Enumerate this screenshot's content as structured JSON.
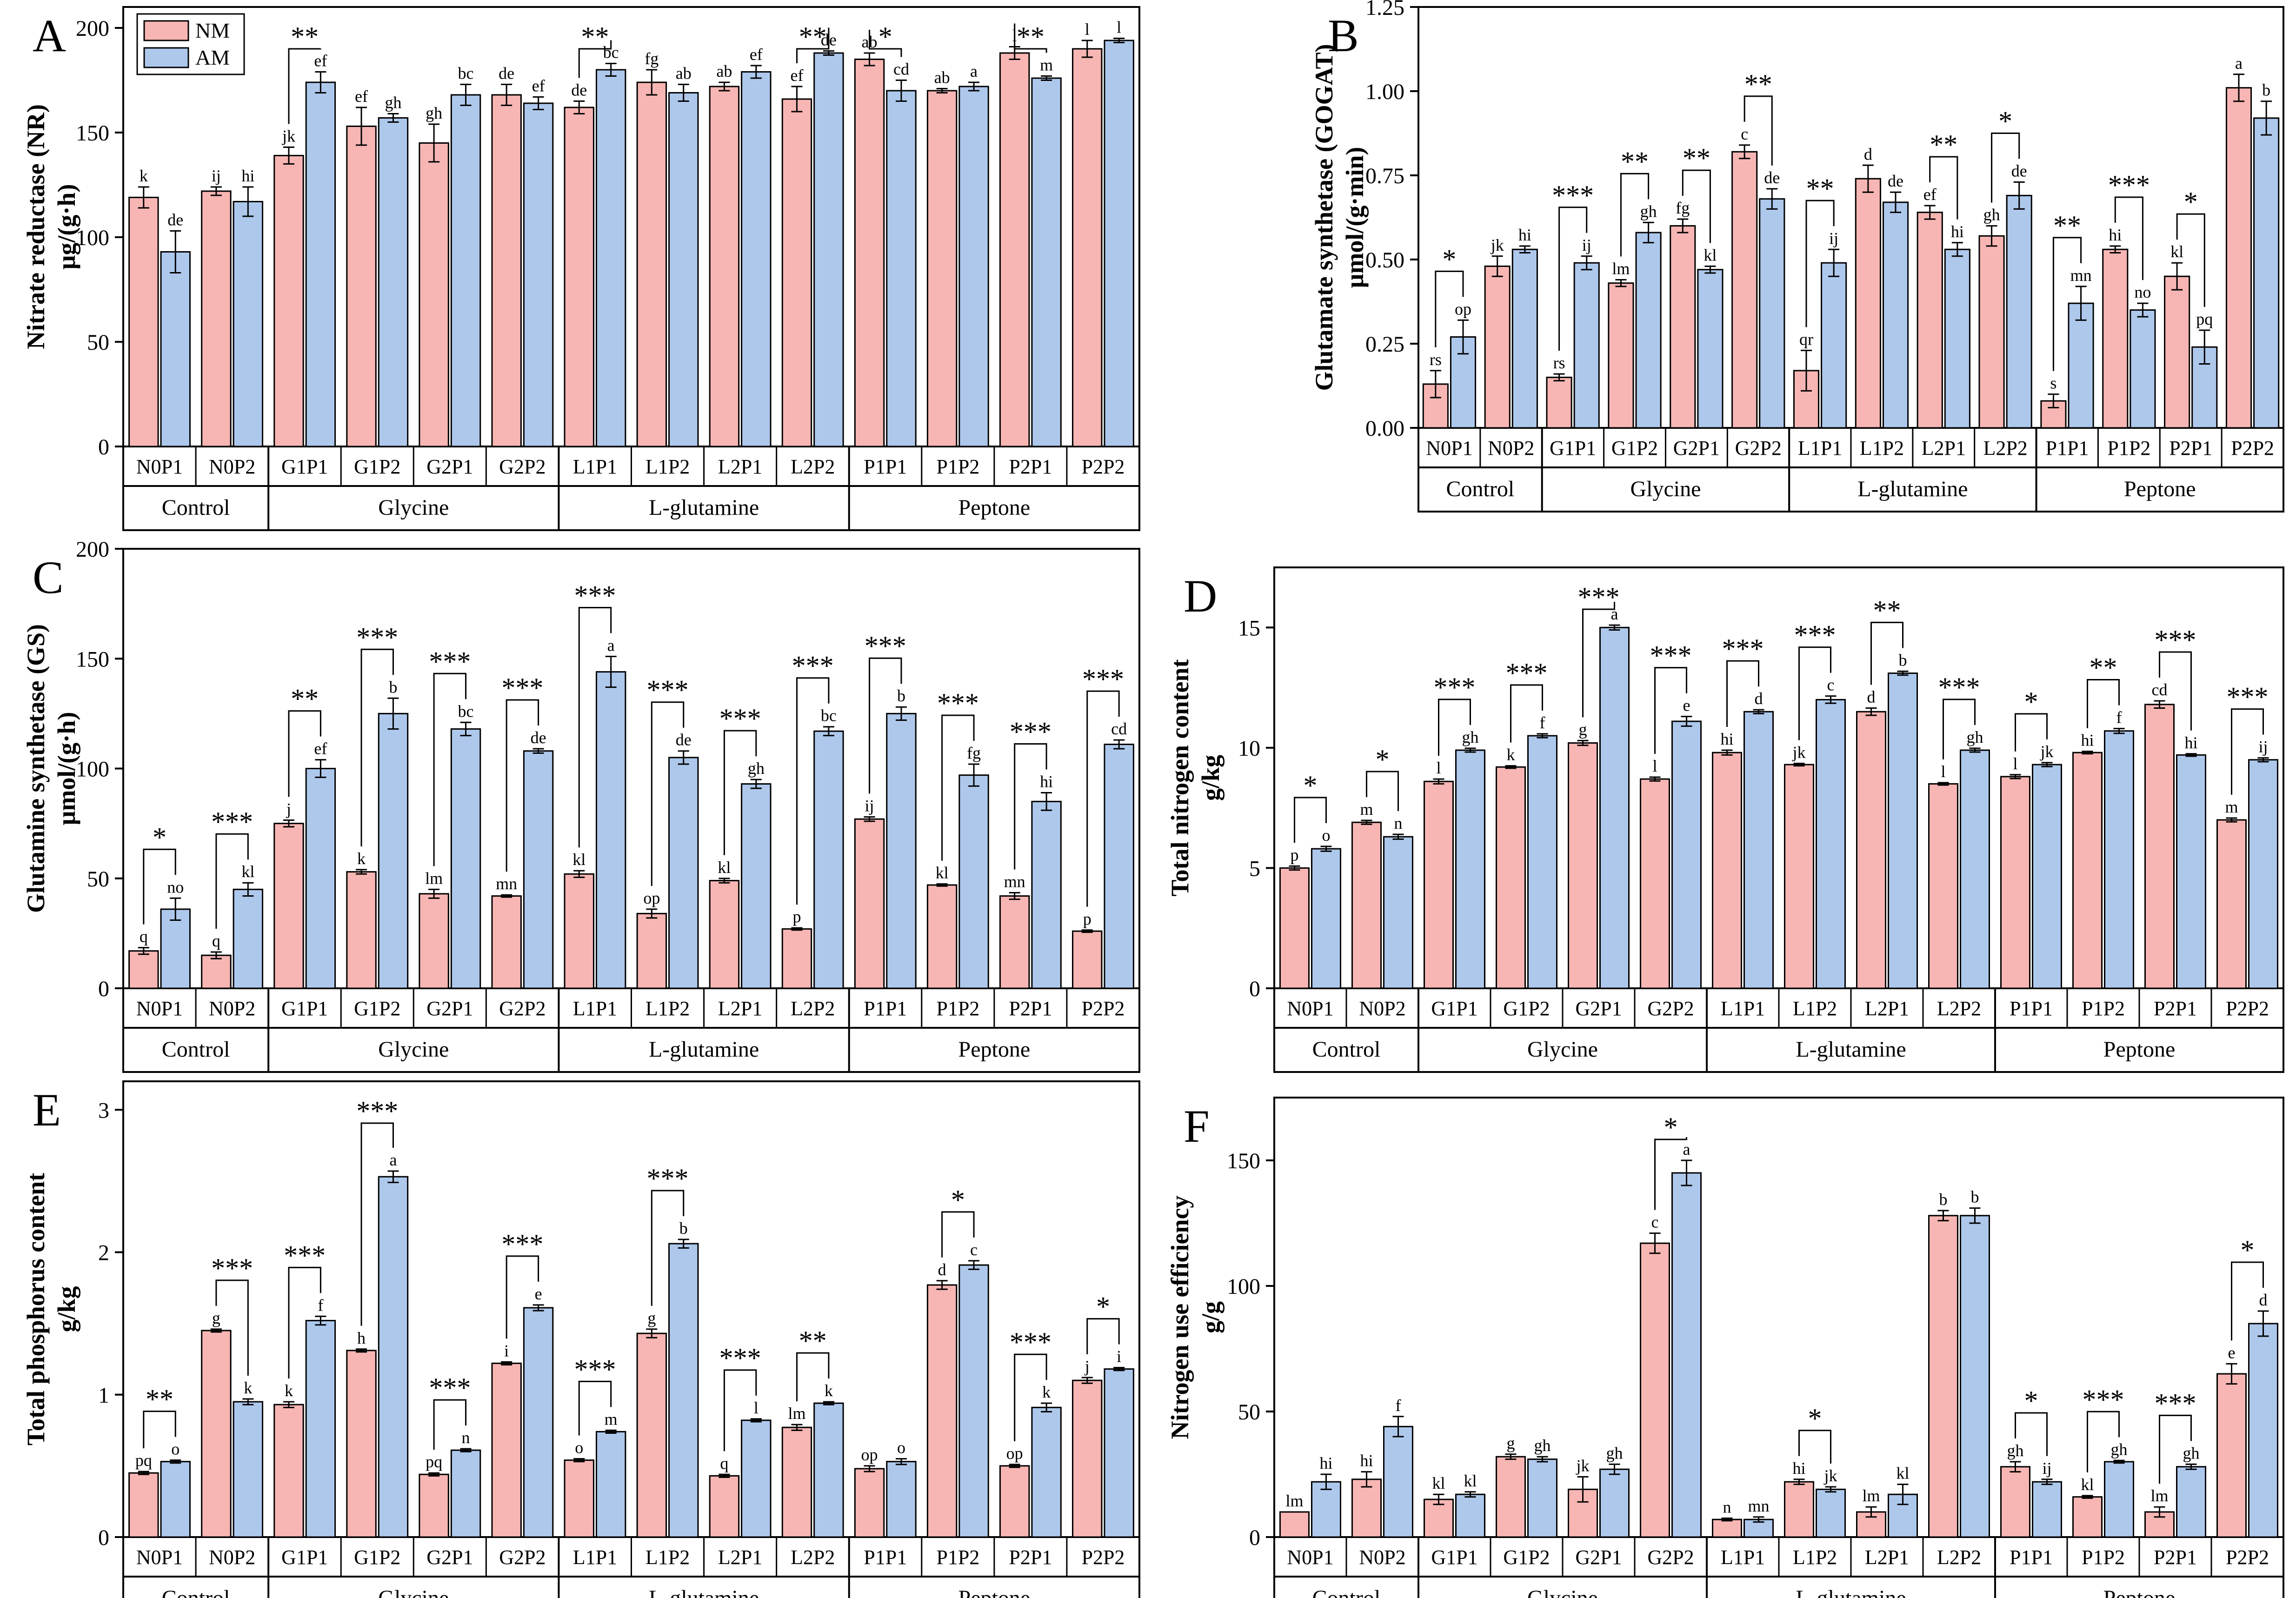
{
  "figure": {
    "legend": {
      "items": [
        {
          "label": "NM",
          "color": "#F7B6B3"
        },
        {
          "label": "AM",
          "color": "#AEC8EC"
        }
      ]
    },
    "colors": {
      "nm": "#F7B6B3",
      "am": "#AEC8EC",
      "axis": "#000000"
    },
    "groups": [
      "Control",
      "Glycine",
      "L-glutamine",
      "Peptone"
    ],
    "treatments": [
      "N0P1",
      "N0P2",
      "G1P1",
      "G1P2",
      "G2P1",
      "G2P2",
      "L1P1",
      "L1P2",
      "L2P1",
      "L2P2",
      "P1P1",
      "P1P2",
      "P2P1",
      "P2P2"
    ]
  },
  "chart_data": [
    {
      "panel": "A",
      "type": "bar",
      "ylabel": [
        "Nitrate reductase (NR)",
        "μg/(g·h)"
      ],
      "ylim": [
        0,
        210
      ],
      "yticks": [
        0,
        50,
        100,
        150,
        200
      ],
      "series": [
        {
          "name": "NM",
          "values": [
            119,
            122,
            139,
            153,
            145,
            168,
            162,
            174,
            172,
            166,
            185,
            170,
            188,
            190
          ],
          "err": [
            5,
            2,
            4,
            9,
            9,
            5,
            3,
            6,
            2,
            6,
            3,
            1,
            3,
            4
          ],
          "letters": [
            "k",
            "ij",
            "jk",
            "ef",
            "gh",
            "de",
            "de",
            "fg",
            "ab",
            "ef",
            "ab",
            "ab",
            "l",
            "l"
          ]
        },
        {
          "name": "AM",
          "values": [
            93,
            117,
            174,
            157,
            168,
            164,
            180,
            169,
            179,
            188,
            170,
            172,
            176,
            194
          ],
          "err": [
            10,
            7,
            5,
            2,
            5,
            3,
            3,
            4,
            3,
            1,
            5,
            2,
            1,
            1
          ],
          "letters": [
            "de",
            "hi",
            "ef",
            "gh",
            "bc",
            "ef",
            "bc",
            "ab",
            "ef",
            "de",
            "cd",
            "a",
            "m",
            "l"
          ]
        }
      ],
      "sig": [
        "",
        "",
        "**",
        "",
        "",
        "",
        "**",
        "",
        "",
        "**",
        "*",
        "",
        "**",
        ""
      ]
    },
    {
      "panel": "B",
      "type": "bar",
      "ylabel": [
        "Glutamate synthetase (GOGAT)",
        "μmol/(g·min)"
      ],
      "ylim": [
        0,
        1.25
      ],
      "yticks": [
        "0.00",
        "0.25",
        "0.50",
        "0.75",
        "1.00",
        "1.25"
      ],
      "series": [
        {
          "name": "NM",
          "values": [
            0.13,
            0.48,
            0.15,
            0.43,
            0.6,
            0.82,
            0.17,
            0.74,
            0.64,
            0.57,
            0.08,
            0.53,
            0.45,
            1.01
          ],
          "err": [
            0.04,
            0.03,
            0.01,
            0.01,
            0.02,
            0.02,
            0.06,
            0.04,
            0.02,
            0.03,
            0.02,
            0.01,
            0.04,
            0.04
          ],
          "letters": [
            "rs",
            "jk",
            "rs",
            "lm",
            "fg",
            "c",
            "qr",
            "d",
            "ef",
            "gh",
            "s",
            "hi",
            "kl",
            "a"
          ]
        },
        {
          "name": "AM",
          "values": [
            0.27,
            0.53,
            0.49,
            0.58,
            0.47,
            0.68,
            0.49,
            0.67,
            0.53,
            0.69,
            0.37,
            0.35,
            0.24,
            0.92
          ],
          "err": [
            0.05,
            0.01,
            0.02,
            0.03,
            0.01,
            0.03,
            0.04,
            0.03,
            0.02,
            0.04,
            0.05,
            0.02,
            0.05,
            0.05
          ],
          "letters": [
            "op",
            "hi",
            "ij",
            "gh",
            "kl",
            "de",
            "ij",
            "de",
            "hi",
            "de",
            "mn",
            "no",
            "pq",
            "b"
          ]
        }
      ],
      "sig": [
        "*",
        "",
        "***",
        "**",
        "**",
        "**",
        "**",
        "",
        "**",
        "*",
        "**",
        "***",
        "*",
        ""
      ]
    },
    {
      "panel": "C",
      "type": "bar",
      "ylabel": [
        "Glutamine synthetase (GS)",
        "μmol/(g·h)"
      ],
      "ylim": [
        0,
        200
      ],
      "yticks": [
        0,
        50,
        100,
        150,
        200
      ],
      "series": [
        {
          "name": "NM",
          "values": [
            17,
            15,
            75,
            53,
            43,
            42,
            52,
            34,
            49,
            27,
            77,
            47,
            42,
            26
          ],
          "err": [
            1.5,
            1.5,
            1.5,
            1,
            2,
            0.5,
            1.5,
            2,
            1,
            0.5,
            1,
            0.5,
            1.5,
            0.5
          ],
          "letters": [
            "q",
            "q",
            "j",
            "k",
            "lm",
            "mn",
            "kl",
            "op",
            "kl",
            "p",
            "ij",
            "kl",
            "mn",
            "p"
          ]
        },
        {
          "name": "AM",
          "values": [
            36,
            45,
            100,
            125,
            118,
            108,
            144,
            105,
            93,
            117,
            125,
            97,
            85,
            111
          ],
          "err": [
            5,
            3,
            4,
            7,
            3,
            1,
            7,
            3,
            2,
            2,
            3,
            5,
            4,
            2
          ],
          "letters": [
            "no",
            "kl",
            "ef",
            "b",
            "bc",
            "de",
            "a",
            "de",
            "gh",
            "bc",
            "b",
            "fg",
            "hi",
            "cd"
          ]
        }
      ],
      "sig": [
        "*",
        "***",
        "**",
        "***",
        "***",
        "***",
        "***",
        "***",
        "***",
        "***",
        "***",
        "***",
        "***",
        "***"
      ]
    },
    {
      "panel": "D",
      "type": "bar",
      "ylabel": [
        "Total nitrogen content",
        "g/kg"
      ],
      "ylim": [
        0,
        17.5
      ],
      "yticks": [
        0,
        5,
        10,
        15
      ],
      "series": [
        {
          "name": "NM",
          "values": [
            5.0,
            6.9,
            8.6,
            9.2,
            10.2,
            8.7,
            9.8,
            9.3,
            11.5,
            8.5,
            8.8,
            9.8,
            11.8,
            7.0
          ],
          "err": [
            0.08,
            0.08,
            0.1,
            0.05,
            0.1,
            0.08,
            0.1,
            0.05,
            0.15,
            0.05,
            0.08,
            0.05,
            0.15,
            0.08
          ],
          "letters": [
            "p",
            "m",
            "l",
            "k",
            "g",
            "l",
            "hi",
            "jk",
            "d",
            "l",
            "l",
            "hi",
            "cd",
            "m"
          ]
        },
        {
          "name": "AM",
          "values": [
            5.8,
            6.3,
            9.9,
            10.5,
            15.0,
            11.1,
            11.5,
            12.0,
            13.1,
            9.9,
            9.3,
            10.7,
            9.7,
            9.5
          ],
          "err": [
            0.1,
            0.1,
            0.08,
            0.08,
            0.1,
            0.2,
            0.08,
            0.15,
            0.08,
            0.08,
            0.08,
            0.1,
            0.05,
            0.08
          ],
          "letters": [
            "o",
            "n",
            "gh",
            "f",
            "a",
            "e",
            "d",
            "c",
            "b",
            "gh",
            "jk",
            "f",
            "hi",
            "ij"
          ]
        }
      ],
      "sig": [
        "*",
        "*",
        "***",
        "***",
        "***",
        "***",
        "***",
        "***",
        "**",
        "***",
        "*",
        "**",
        "***",
        "***"
      ]
    },
    {
      "panel": "E",
      "type": "bar",
      "ylabel": [
        "Total phosphorus content",
        "g/kg"
      ],
      "ylim": [
        0,
        3.2
      ],
      "yticks": [
        0,
        1,
        2,
        3
      ],
      "series": [
        {
          "name": "NM",
          "values": [
            0.45,
            1.45,
            0.93,
            1.31,
            0.44,
            1.22,
            0.54,
            1.43,
            0.43,
            0.77,
            0.48,
            1.77,
            0.5,
            1.1
          ],
          "err": [
            0.01,
            0.01,
            0.02,
            0.01,
            0.01,
            0.01,
            0.01,
            0.03,
            0.01,
            0.02,
            0.02,
            0.03,
            0.01,
            0.02
          ],
          "letters": [
            "pq",
            "g",
            "k",
            "h",
            "pq",
            "i",
            "o",
            "g",
            "q",
            "lm",
            "op",
            "d",
            "op",
            "j"
          ]
        },
        {
          "name": "AM",
          "values": [
            0.53,
            0.95,
            1.52,
            2.53,
            0.61,
            1.61,
            0.74,
            2.06,
            0.82,
            0.94,
            0.53,
            1.91,
            0.91,
            1.18
          ],
          "err": [
            0.01,
            0.02,
            0.03,
            0.04,
            0.01,
            0.02,
            0.01,
            0.03,
            0.01,
            0.01,
            0.02,
            0.03,
            0.03,
            0.01
          ],
          "letters": [
            "o",
            "k",
            "f",
            "a",
            "n",
            "e",
            "m",
            "b",
            "l",
            "k",
            "o",
            "c",
            "k",
            "i"
          ]
        }
      ],
      "sig": [
        "**",
        "***",
        "***",
        "***",
        "***",
        "***",
        "***",
        "***",
        "***",
        "**",
        "",
        "*",
        "***",
        "*"
      ]
    },
    {
      "panel": "F",
      "type": "bar",
      "ylabel": [
        "Nitrogen use  efficiency",
        "g/g"
      ],
      "ylim": [
        0,
        175
      ],
      "yticks": [
        0,
        50,
        100,
        150
      ],
      "series": [
        {
          "name": "NM",
          "values": [
            10,
            23,
            15,
            32,
            19,
            117,
            7,
            22,
            10,
            128,
            28,
            16,
            10,
            65
          ],
          "err": [
            0,
            3,
            2,
            1,
            5,
            4,
            0.5,
            1,
            2,
            2,
            2,
            0.5,
            2,
            4
          ],
          "letters": [
            "lm",
            "hi",
            "kl",
            "g",
            "jk",
            "c",
            "n",
            "hi",
            "lm",
            "b",
            "gh",
            "kl",
            "lm",
            "e"
          ]
        },
        {
          "name": "AM",
          "values": [
            22,
            44,
            17,
            31,
            27,
            145,
            7,
            19,
            17,
            128,
            22,
            30,
            28,
            85
          ],
          "err": [
            3,
            4,
            1,
            1,
            2,
            5,
            1,
            1,
            4,
            3,
            1,
            0.5,
            1,
            5
          ],
          "letters": [
            "hi",
            "f",
            "kl",
            "gh",
            "gh",
            "a",
            "mn",
            "jk",
            "kl",
            "b",
            "ij",
            "gh",
            "gh",
            "d"
          ]
        }
      ],
      "sig": [
        "",
        "",
        "",
        "",
        "",
        "*",
        "",
        "*",
        "",
        "",
        "*",
        "***",
        "***",
        "*"
      ]
    }
  ]
}
